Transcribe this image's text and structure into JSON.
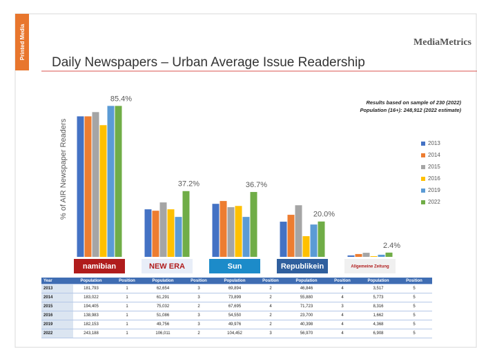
{
  "sidebar": "Printed Media",
  "brand": "MediaMetrics",
  "chart_data": {
    "type": "bar",
    "title": "Daily Newspapers – Urban Average Issue Readership",
    "y_label": "% of AIR Newspaper Readers",
    "notes": [
      "Results based on sample of 230 (2022)",
      "Population (16+): 248,912 (2022 estimate)"
    ],
    "categories": [
      "namibian",
      "NEW ERA",
      "Sun",
      "Republikein",
      "Allgemeine Zeitung"
    ],
    "ylim": [
      0,
      100
    ],
    "legend": "right",
    "series": [
      {
        "name": "2013",
        "color": "#4472c4",
        "values": [
          79.5,
          26.9,
          30.0,
          19.9,
          0.8
        ]
      },
      {
        "name": "2014",
        "color": "#ed7d31",
        "values": [
          79.5,
          26.1,
          31.6,
          23.8,
          1.6
        ]
      },
      {
        "name": "2015",
        "color": "#a5a5a5",
        "values": [
          81.9,
          30.8,
          28.1,
          29.2,
          2.3
        ]
      },
      {
        "name": "2016",
        "color": "#ffc000",
        "values": [
          74.5,
          26.9,
          28.8,
          11.7,
          0.4
        ]
      },
      {
        "name": "2019",
        "color": "#5b9bd5",
        "values": [
          85.4,
          22.6,
          22.6,
          18.3,
          1.2
        ]
      },
      {
        "name": "2022",
        "color": "#70ad47",
        "values": [
          85.4,
          37.2,
          36.7,
          20.0,
          2.4
        ],
        "value_labels": [
          "85.4%",
          "37.2%",
          "36.7%",
          "20.0%",
          "2.4%"
        ]
      }
    ]
  },
  "table": {
    "header": [
      "Year",
      "Population",
      "Position",
      "Population",
      "Position",
      "Population",
      "Position",
      "Population",
      "Position",
      "Population",
      "Position"
    ],
    "rows": [
      [
        "2013",
        "181,793",
        "1",
        "62,654",
        "3",
        "69,894",
        "2",
        "46,846",
        "4",
        "3,517",
        "5"
      ],
      [
        "2014",
        "183,022",
        "1",
        "61,291",
        "3",
        "73,899",
        "2",
        "55,880",
        "4",
        "5,773",
        "5"
      ],
      [
        "2015",
        "194,405",
        "1",
        "75,032",
        "2",
        "67,695",
        "4",
        "71,723",
        "3",
        "8,316",
        "5"
      ],
      [
        "2016",
        "138,983",
        "1",
        "51,086",
        "3",
        "54,550",
        "2",
        "23,700",
        "4",
        "1,662",
        "5"
      ],
      [
        "2019",
        "182,153",
        "1",
        "49,756",
        "3",
        "49,976",
        "2",
        "40,398",
        "4",
        "4,368",
        "5"
      ],
      [
        "2022",
        "243,188",
        "1",
        "106,011",
        "2",
        "104,452",
        "3",
        "56,970",
        "4",
        "6,908",
        "5"
      ]
    ]
  }
}
